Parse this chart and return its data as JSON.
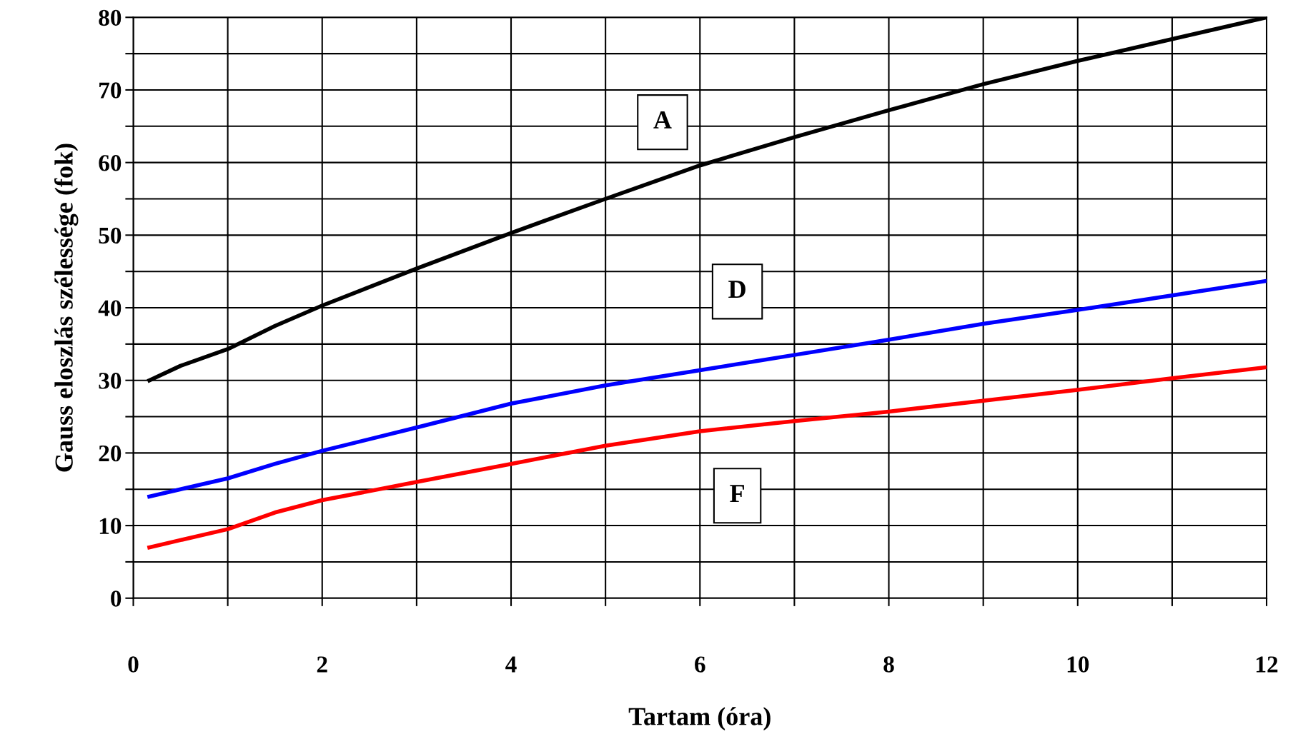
{
  "chart_data": {
    "type": "line",
    "xlabel": "Tartam (óra)",
    "ylabel": "Gauss eloszlás szélessége (fok)",
    "xlim": [
      0,
      12
    ],
    "ylim": [
      0,
      80
    ],
    "xticks": [
      0,
      {
        "value": 1,
        "label": null
      },
      2,
      {
        "value": 3,
        "label": null
      },
      4,
      {
        "value": 5,
        "label": null
      },
      6,
      {
        "value": 7,
        "label": null
      },
      8,
      {
        "value": 9,
        "label": null
      },
      10,
      {
        "value": 11,
        "label": null
      },
      12
    ],
    "yticks": [
      0,
      {
        "value": 5,
        "label": null
      },
      10,
      {
        "value": 15,
        "label": null
      },
      20,
      {
        "value": 25,
        "label": null
      },
      30,
      {
        "value": 35,
        "label": null
      },
      40,
      {
        "value": 45,
        "label": null
      },
      50,
      {
        "value": 55,
        "label": null
      },
      60,
      {
        "value": 65,
        "label": null
      },
      70,
      {
        "value": 75,
        "label": null
      },
      80
    ],
    "grid": true,
    "marker": "none",
    "line_style": "solid",
    "x": [
      0.17,
      0.5,
      1,
      1.5,
      2,
      3,
      4,
      5,
      6,
      7,
      8,
      9,
      10,
      11,
      12
    ],
    "series": [
      {
        "name": "A",
        "color": "#000000",
        "values": [
          30,
          32,
          34.3,
          37.5,
          40.3,
          45.4,
          50.3,
          55,
          59.6,
          63.5,
          67.2,
          70.8,
          74,
          77,
          80
        ]
      },
      {
        "name": "D",
        "color": "#0000ff",
        "values": [
          14,
          15,
          16.5,
          18.5,
          20.3,
          23.5,
          26.8,
          29.3,
          31.4,
          33.5,
          35.6,
          37.8,
          39.7,
          41.7,
          43.7
        ]
      },
      {
        "name": "F",
        "color": "#ff0000",
        "values": [
          7,
          8,
          9.5,
          11.8,
          13.5,
          16,
          18.5,
          21,
          23,
          24.4,
          25.7,
          27.2,
          28.7,
          30.3,
          31.8
        ]
      }
    ]
  }
}
